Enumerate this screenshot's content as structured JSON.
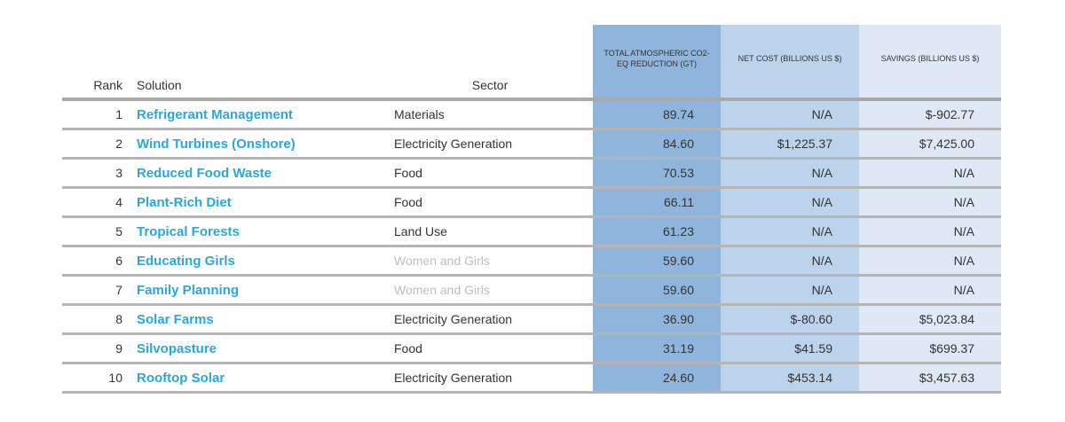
{
  "table": {
    "header": [
      "Rank",
      "Solution",
      "Sector",
      "TOTAL ATMOSPHERIC CO2-EQ REDUCTION (GT)",
      "NET COST (BILLIONS US $)",
      "SAVINGS (BILLIONS US $)"
    ],
    "rows": [
      [
        "1",
        "Refrigerant Management",
        "Materials",
        "89.74",
        "N/A",
        "$-902.77"
      ],
      [
        "2",
        "Wind Turbines (Onshore)",
        "Electricity Generation",
        "84.60",
        "$1,225.37",
        "$7,425.00"
      ],
      [
        "3",
        "Reduced Food Waste",
        "Food",
        "70.53",
        "N/A",
        "N/A"
      ],
      [
        "4",
        "Plant-Rich Diet",
        "Food",
        "66.11",
        "N/A",
        "N/A"
      ],
      [
        "5",
        "Tropical Forests",
        "Land Use",
        "61.23",
        "N/A",
        "N/A"
      ],
      [
        "6",
        "Educating Girls",
        "Women and Girls",
        "59.60",
        "N/A",
        "N/A"
      ],
      [
        "7",
        "Family Planning",
        "Women and Girls",
        "59.60",
        "N/A",
        "N/A"
      ],
      [
        "8",
        "Solar Farms",
        "Electricity Generation",
        "36.90",
        "$-80.60",
        "$5,023.84"
      ],
      [
        "9",
        "Silvopasture",
        "Food",
        "31.19",
        "$41.59",
        "$699.37"
      ],
      [
        "10",
        "Rooftop Solar",
        "Electricity Generation",
        "24.60",
        "$453.14",
        "$3,457.63"
      ]
    ]
  }
}
